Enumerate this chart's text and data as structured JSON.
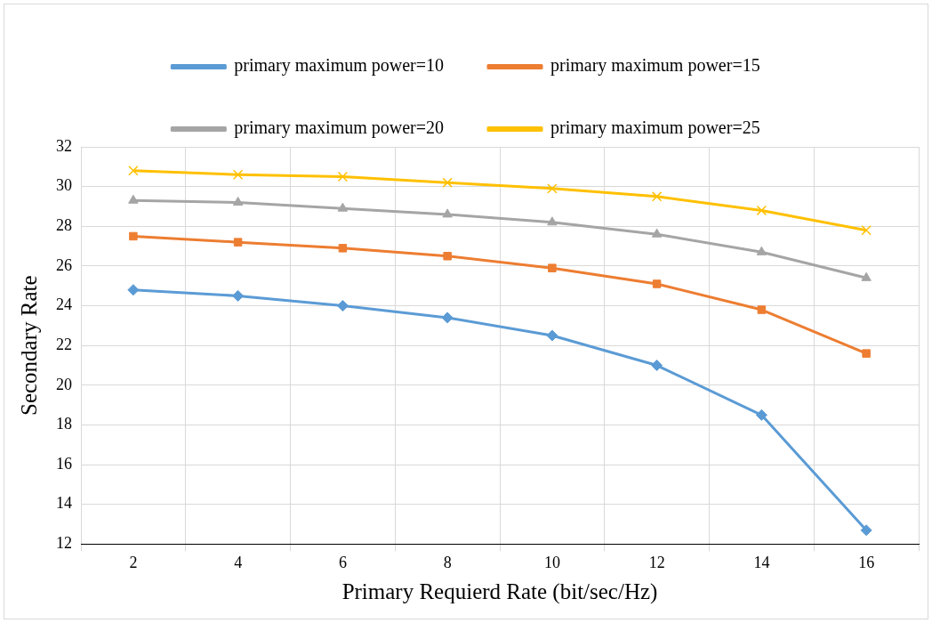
{
  "chart_data": {
    "type": "line",
    "xlabel": "Primary Requierd Rate (bit/sec/Hz)",
    "ylabel": "Secondary Rate",
    "categories": [
      "2",
      "4",
      "6",
      "8",
      "10",
      "12",
      "14",
      "16"
    ],
    "series": [
      {
        "name": "primary maximum power=10",
        "color": "#5b9bd5",
        "marker": "diamond",
        "values": [
          24.8,
          24.5,
          24.0,
          23.4,
          22.5,
          21.0,
          18.5,
          12.7
        ]
      },
      {
        "name": "primary maximum power=15",
        "color": "#ed7d31",
        "marker": "square",
        "values": [
          27.5,
          27.2,
          26.9,
          26.5,
          25.9,
          25.1,
          23.8,
          21.6
        ]
      },
      {
        "name": "primary maximum power=20",
        "color": "#a5a5a5",
        "marker": "triangle",
        "values": [
          29.3,
          29.2,
          28.9,
          28.6,
          28.2,
          27.6,
          26.7,
          25.4
        ]
      },
      {
        "name": "primary maximum power=25",
        "color": "#ffc000",
        "marker": "cross",
        "values": [
          30.8,
          30.6,
          30.5,
          30.2,
          29.9,
          29.5,
          28.8,
          27.8
        ]
      }
    ],
    "ylim": [
      12,
      32
    ],
    "yticks": [
      12,
      14,
      16,
      18,
      20,
      22,
      24,
      26,
      28,
      30,
      32
    ],
    "grid": true,
    "legend": "top",
    "line_style": "solid"
  }
}
